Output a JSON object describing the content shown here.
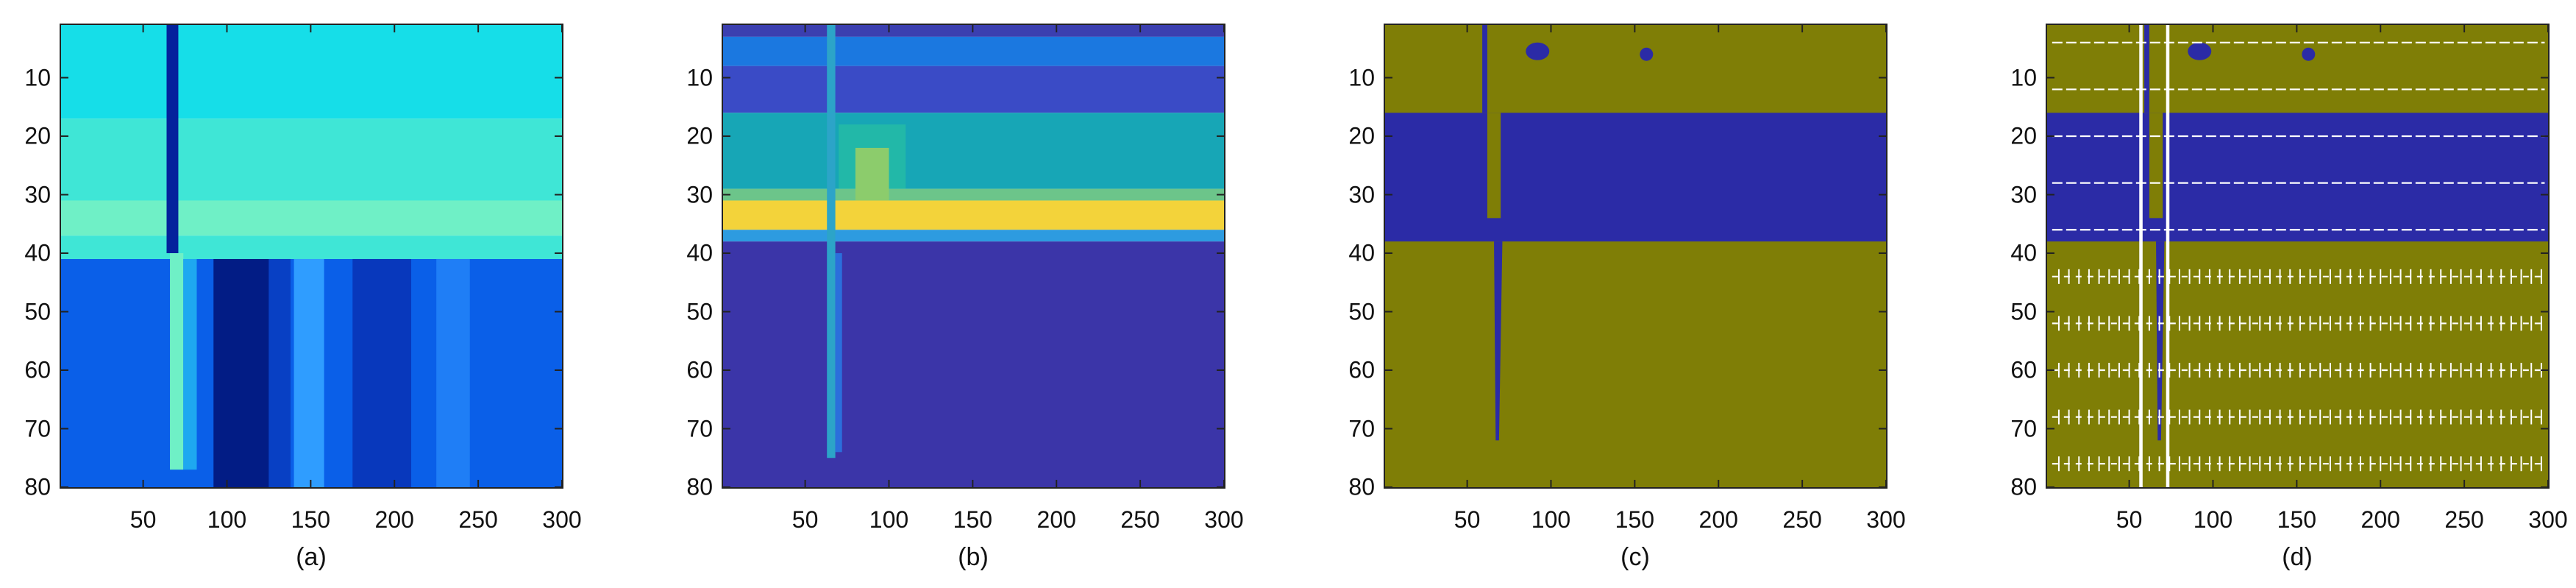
{
  "chart_data": [
    {
      "type": "heatmap",
      "caption": "(a)",
      "colormap": "jet",
      "x_ticks": [
        "50",
        "100",
        "150",
        "200",
        "250",
        "300"
      ],
      "y_ticks": [
        "10",
        "20",
        "30",
        "40",
        "50",
        "60",
        "70",
        "80"
      ],
      "xlim": [
        1,
        300
      ],
      "ylim": [
        1,
        80
      ],
      "y_reversed": true,
      "features": [
        {
          "region": "rows 1-17",
          "color": "#16dee8"
        },
        {
          "region": "rows 17-31",
          "color": "#3fe6d6"
        },
        {
          "region": "rows 31-37",
          "color": "#6ff0c6"
        },
        {
          "region": "rows 37-41",
          "color": "#3fe6d6"
        },
        {
          "region": "rows 41-80",
          "color": "#0a5fe8"
        },
        {
          "region": "vertical streak at x=64-72, y=1-40",
          "color": "#04229c"
        },
        {
          "region": "vertical streak at x=66-76, y=40-80",
          "color": "#6ff0c6"
        },
        {
          "region": "dark band x=92-125, y=41-80",
          "color": "#01157a"
        },
        {
          "region": "light band x=140-158, y=41-80",
          "color": "#2f9dff"
        }
      ]
    },
    {
      "type": "heatmap",
      "caption": "(b)",
      "colormap": "parula",
      "x_ticks": [
        "50",
        "100",
        "150",
        "200",
        "250",
        "300"
      ],
      "y_ticks": [
        "10",
        "20",
        "30",
        "40",
        "50",
        "60",
        "70",
        "80"
      ],
      "xlim": [
        1,
        300
      ],
      "ylim": [
        1,
        80
      ],
      "y_reversed": true,
      "features": [
        {
          "region": "rows 1-3",
          "color": "#3b3fb0"
        },
        {
          "region": "rows 3-8",
          "color": "#1b78e0"
        },
        {
          "region": "rows 8-16",
          "color": "#3a4bc6"
        },
        {
          "region": "rows 16-29",
          "color": "#17a6b6"
        },
        {
          "region": "rows 29-36",
          "color": "#f3d33a"
        },
        {
          "region": "rows 36-80",
          "color": "#3b35a8"
        },
        {
          "region": "vertical streak at x=63-68, y=1-75",
          "color": "#2ca4c8"
        }
      ]
    },
    {
      "type": "heatmap",
      "caption": "(c)",
      "colormap": "binary",
      "x_ticks": [
        "50",
        "100",
        "150",
        "200",
        "250",
        "300"
      ],
      "y_ticks": [
        "10",
        "20",
        "30",
        "40",
        "50",
        "60",
        "70",
        "80"
      ],
      "xlim": [
        1,
        300
      ],
      "ylim": [
        1,
        80
      ],
      "y_reversed": true,
      "features": [
        {
          "region": "background",
          "color": "#7f7e06"
        },
        {
          "region": "band rows 16-38",
          "color": "#2b2ba6"
        },
        {
          "region": "thin streak x=60, y=1-16",
          "color": "#2b2ba6"
        },
        {
          "region": "spot near x=92, y=5",
          "color": "#2b2ba6"
        },
        {
          "region": "spot near x=157, y=6",
          "color": "#2b2ba6"
        },
        {
          "region": "spike x=68, y=38-72",
          "color": "#2b2ba6"
        }
      ]
    },
    {
      "type": "heatmap",
      "caption": "(d)",
      "colormap": "binary with vector field overlay",
      "x_ticks": [
        "50",
        "100",
        "150",
        "200",
        "250",
        "300"
      ],
      "y_ticks": [
        "10",
        "20",
        "30",
        "40",
        "50",
        "60",
        "70",
        "80"
      ],
      "xlim": [
        1,
        300
      ],
      "ylim": [
        1,
        80
      ],
      "y_reversed": true,
      "overlay": "white arrow field",
      "features": [
        {
          "region": "background",
          "color": "#7f7e06"
        },
        {
          "region": "band rows 16-38",
          "color": "#2b2ba6"
        },
        {
          "region": "spike x=68, y=38-72",
          "color": "#2b2ba6"
        },
        {
          "region": "arrows",
          "color": "#ffffff"
        }
      ]
    }
  ]
}
